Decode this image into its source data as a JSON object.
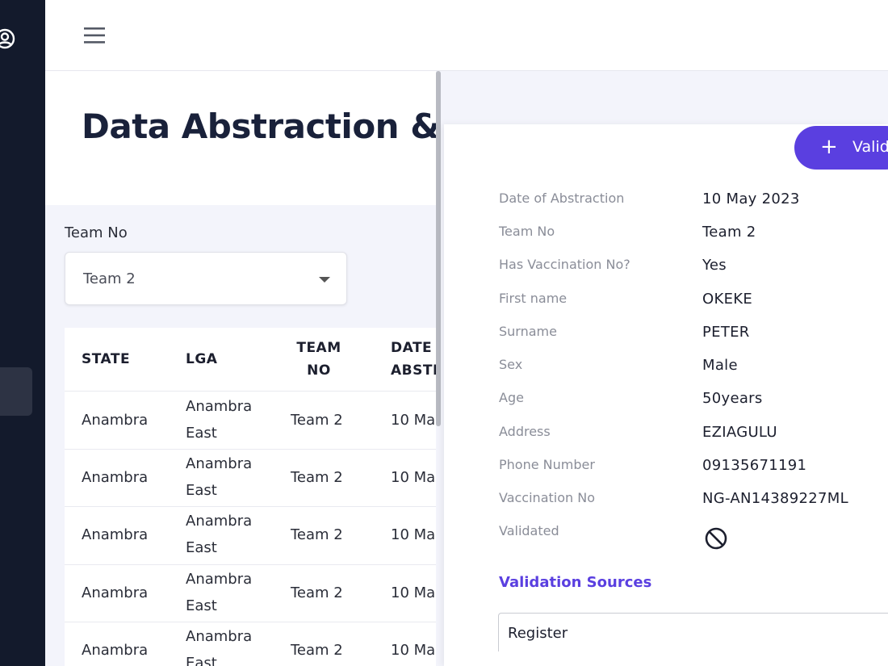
{
  "sidebar": {
    "user_icon": "user-circle-icon"
  },
  "topbar": {
    "menu_icon": "hamburger-menu-icon"
  },
  "page": {
    "title": "Data Abstraction & V"
  },
  "filter": {
    "label": "Team No",
    "selected": "Team 2"
  },
  "table": {
    "headers": [
      "STATE",
      "LGA",
      "TEAM NO",
      "DATE ABSTI"
    ],
    "rows": [
      {
        "state": "Anambra",
        "lga_1": "Anambra",
        "lga_2": "East",
        "team": "Team 2",
        "date": "10 Ma"
      },
      {
        "state": "Anambra",
        "lga_1": "Anambra",
        "lga_2": "East",
        "team": "Team 2",
        "date": "10 Ma"
      },
      {
        "state": "Anambra",
        "lga_1": "Anambra",
        "lga_2": "East",
        "team": "Team 2",
        "date": "10 Ma"
      },
      {
        "state": "Anambra",
        "lga_1": "Anambra",
        "lga_2": "East",
        "team": "Team 2",
        "date": "10 Ma"
      },
      {
        "state": "Anambra",
        "lga_1": "Anambra",
        "lga_2": "East",
        "team": "Team 2",
        "date": "10 Ma"
      }
    ]
  },
  "detail": {
    "validate_label": "Valid",
    "fields": [
      {
        "label": "Date of Abstraction",
        "value": "10 May 2023"
      },
      {
        "label": "Team No",
        "value": "Team 2"
      },
      {
        "label": "Has Vaccination No?",
        "value": "Yes"
      },
      {
        "label": "First name",
        "value": "OKEKE"
      },
      {
        "label": "Surname",
        "value": "PETER"
      },
      {
        "label": "Sex",
        "value": "Male"
      },
      {
        "label": "Age",
        "value": "50years"
      },
      {
        "label": "Address",
        "value": "EZIAGULU"
      },
      {
        "label": "Phone Number",
        "value": "09135671191"
      },
      {
        "label": "Vaccination No",
        "value": "NG-AN14389227ML"
      },
      {
        "label": "Validated",
        "value": ""
      }
    ],
    "validated_icon": "ban-icon",
    "sources_title": "Validation Sources",
    "register": "Register"
  },
  "colors": {
    "accent": "#5a3fe0",
    "sidebar": "#131a2c"
  }
}
